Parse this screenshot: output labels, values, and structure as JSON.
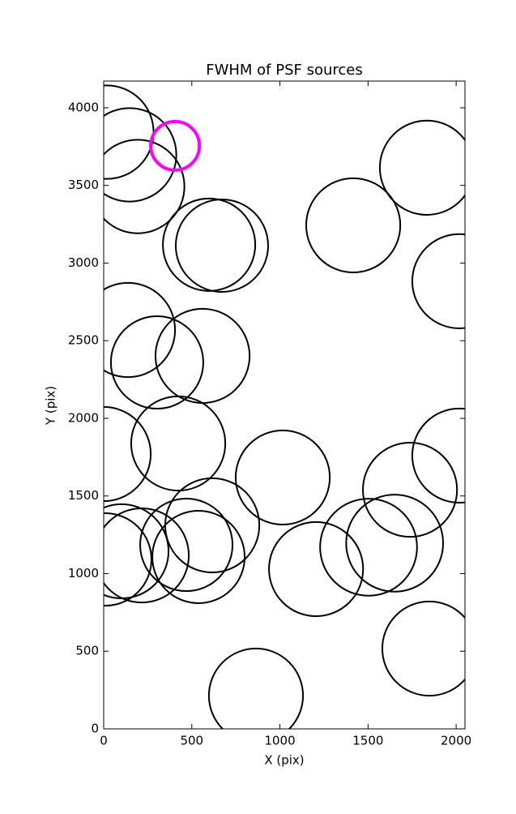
{
  "chart_data": {
    "type": "scatter",
    "title": "FWHM of PSF sources",
    "x_label": "X (pix)",
    "y_label": "Y (pix)",
    "xlim": [
      0,
      2050
    ],
    "ylim": [
      0,
      4172
    ],
    "xticks": [
      0,
      500,
      1000,
      1500,
      2000
    ],
    "yticks": [
      0,
      500,
      1000,
      1500,
      2000,
      2500,
      3000,
      3500,
      4000
    ],
    "x": [
      18,
      147,
      193,
      405,
      598,
      671,
      1416,
      1834,
      2018,
      138,
      303,
      561,
      0,
      423,
      2018,
      1016,
      1738,
      616,
      469,
      538,
      216,
      101,
      9,
      1205,
      1503,
      1651,
      1848,
      864
    ],
    "y": [
      3843,
      3697,
      3493,
      3755,
      3118,
      3112,
      3243,
      3614,
      2883,
      2569,
      2360,
      2402,
      1770,
      1838,
      1760,
      1619,
      1540,
      1311,
      1185,
      1107,
      1117,
      1144,
      1091,
      1029,
      1170,
      1196,
      517,
      214
    ],
    "sizes": [
      265,
      265,
      265,
      138,
      262,
      262,
      267,
      267,
      267,
      267,
      262,
      267,
      267,
      267,
      267,
      267,
      267,
      267,
      262,
      262,
      267,
      267,
      262,
      267,
      275,
      275,
      267,
      267
    ],
    "colors": [
      "#000000",
      "#000000",
      "#000000",
      "#ff00ff",
      "#000000",
      "#000000",
      "#000000",
      "#000000",
      "#000000",
      "#000000",
      "#000000",
      "#000000",
      "#000000",
      "#000000",
      "#000000",
      "#000000",
      "#000000",
      "#000000",
      "#000000",
      "#000000",
      "#000000",
      "#000000",
      "#000000",
      "#000000",
      "#000000",
      "#000000",
      "#000000",
      "#000000"
    ]
  }
}
